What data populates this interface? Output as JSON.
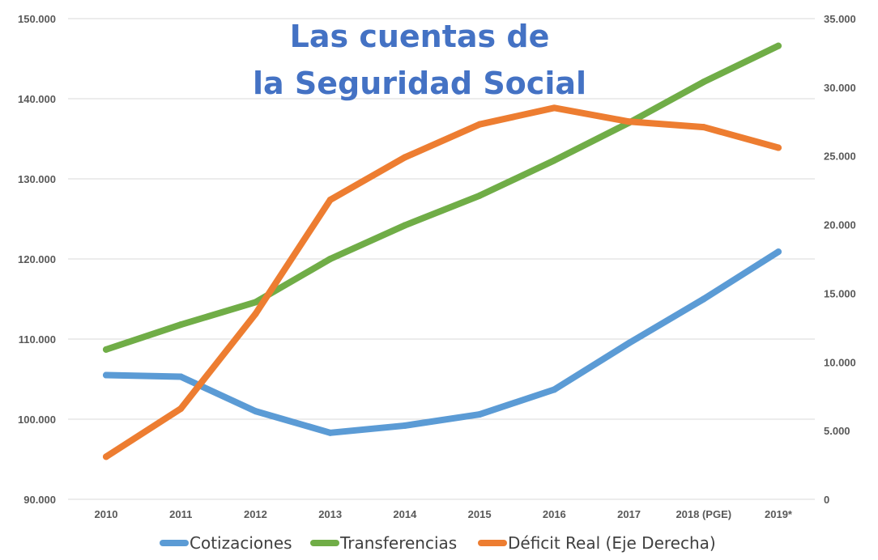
{
  "chart_data": {
    "type": "line",
    "title": "Las cuentas de la Seguridad Social",
    "title_lines": [
      "Las cuentas de",
      "la Seguridad Social"
    ],
    "categories": [
      "2010",
      "2011",
      "2012",
      "2013",
      "2014",
      "2015",
      "2016",
      "2017",
      "2018 (PGE)",
      "2019*"
    ],
    "y_left": {
      "ylim": [
        90000,
        150000
      ],
      "ticks": [
        90000,
        100000,
        110000,
        120000,
        130000,
        140000,
        150000
      ],
      "tick_labels": [
        "90.000",
        "100.000",
        "110.000",
        "120.000",
        "130.000",
        "140.000",
        "150.000"
      ]
    },
    "y_right": {
      "ylim": [
        0,
        35000
      ],
      "ticks": [
        0,
        5000,
        10000,
        15000,
        20000,
        25000,
        30000,
        35000
      ],
      "tick_labels": [
        "0",
        "5.000",
        "10.000",
        "15.000",
        "20.000",
        "25.000",
        "30.000",
        "35.000"
      ]
    },
    "grid": true,
    "legend_position": "bottom",
    "series": [
      {
        "name": "Cotizaciones",
        "axis": "left",
        "color": "#5b9bd5",
        "values": [
          105500,
          105300,
          101000,
          98300,
          99200,
          100600,
          103700,
          109500,
          115000,
          120900
        ]
      },
      {
        "name": "Transferencias",
        "axis": "left",
        "color": "#70ad47",
        "values": [
          108700,
          111800,
          114600,
          120000,
          124200,
          127900,
          132300,
          137000,
          142100,
          146600
        ]
      },
      {
        "name": "Déficit Real (Eje Derecha)",
        "axis": "right",
        "color": "#ed7d31",
        "values": [
          3100,
          6600,
          13500,
          21800,
          24900,
          27300,
          28500,
          27500,
          27100,
          25600
        ]
      }
    ]
  }
}
